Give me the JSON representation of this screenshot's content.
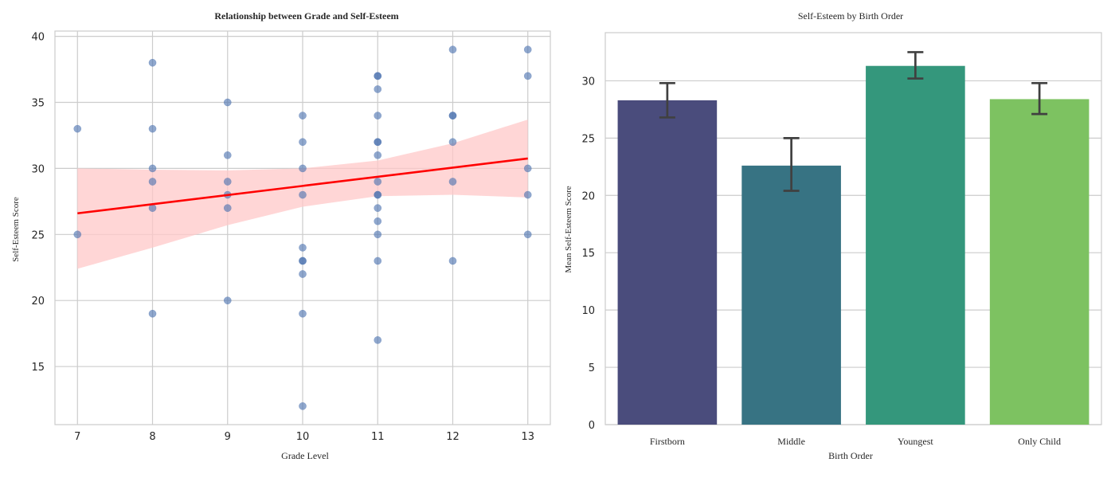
{
  "chart_data": [
    {
      "type": "scatter",
      "title": "Relationship between Grade and Self-Esteem",
      "xlabel": "Grade Level",
      "ylabel": "Self-Esteem Score",
      "xlim": [
        6.7,
        13.3
      ],
      "ylim": [
        10.6,
        40.4
      ],
      "xticks": [
        7,
        8,
        9,
        10,
        11,
        12,
        13
      ],
      "yticks": [
        15,
        20,
        25,
        30,
        35,
        40
      ],
      "grid": true,
      "point_color": "#4c72b0",
      "points": [
        {
          "x": 7,
          "y": 33
        },
        {
          "x": 7,
          "y": 25
        },
        {
          "x": 8,
          "y": 38
        },
        {
          "x": 8,
          "y": 33
        },
        {
          "x": 8,
          "y": 30
        },
        {
          "x": 8,
          "y": 29
        },
        {
          "x": 8,
          "y": 27
        },
        {
          "x": 8,
          "y": 19
        },
        {
          "x": 9,
          "y": 35
        },
        {
          "x": 9,
          "y": 31
        },
        {
          "x": 9,
          "y": 29
        },
        {
          "x": 9,
          "y": 28
        },
        {
          "x": 9,
          "y": 27
        },
        {
          "x": 9,
          "y": 20
        },
        {
          "x": 10,
          "y": 34
        },
        {
          "x": 10,
          "y": 32
        },
        {
          "x": 10,
          "y": 30
        },
        {
          "x": 10,
          "y": 28
        },
        {
          "x": 10,
          "y": 24
        },
        {
          "x": 10,
          "y": 23
        },
        {
          "x": 10,
          "y": 23
        },
        {
          "x": 10,
          "y": 22
        },
        {
          "x": 10,
          "y": 19
        },
        {
          "x": 10,
          "y": 12
        },
        {
          "x": 11,
          "y": 37
        },
        {
          "x": 11,
          "y": 37
        },
        {
          "x": 11,
          "y": 36
        },
        {
          "x": 11,
          "y": 34
        },
        {
          "x": 11,
          "y": 32
        },
        {
          "x": 11,
          "y": 32
        },
        {
          "x": 11,
          "y": 31
        },
        {
          "x": 11,
          "y": 29
        },
        {
          "x": 11,
          "y": 28
        },
        {
          "x": 11,
          "y": 28
        },
        {
          "x": 11,
          "y": 27
        },
        {
          "x": 11,
          "y": 26
        },
        {
          "x": 11,
          "y": 25
        },
        {
          "x": 11,
          "y": 23
        },
        {
          "x": 11,
          "y": 17
        },
        {
          "x": 12,
          "y": 39
        },
        {
          "x": 12,
          "y": 34
        },
        {
          "x": 12,
          "y": 34
        },
        {
          "x": 12,
          "y": 32
        },
        {
          "x": 12,
          "y": 29
        },
        {
          "x": 12,
          "y": 23
        },
        {
          "x": 13,
          "y": 39
        },
        {
          "x": 13,
          "y": 37
        },
        {
          "x": 13,
          "y": 30
        },
        {
          "x": 13,
          "y": 28
        },
        {
          "x": 13,
          "y": 25
        }
      ],
      "regression": {
        "color": "#ff0000",
        "line": [
          [
            7,
            26.6
          ],
          [
            13,
            30.75
          ]
        ],
        "ci_color": "#ffc8c8",
        "ci_upper": [
          [
            7,
            30.0
          ],
          [
            8,
            29.9
          ],
          [
            9,
            29.85
          ],
          [
            10,
            30.0
          ],
          [
            11,
            30.6
          ],
          [
            12,
            31.9
          ],
          [
            13,
            33.7
          ]
        ],
        "ci_lower": [
          [
            7,
            22.4
          ],
          [
            8,
            24.0
          ],
          [
            9,
            25.7
          ],
          [
            10,
            27.1
          ],
          [
            11,
            27.9
          ],
          [
            12,
            28.0
          ],
          [
            13,
            27.8
          ]
        ]
      }
    },
    {
      "type": "bar",
      "title": "Self-Esteem by Birth Order",
      "xlabel": "Birth Order",
      "ylabel": "Mean Self-Esteem Score",
      "ylim": [
        0,
        34.2
      ],
      "yticks": [
        0,
        5,
        10,
        15,
        20,
        25,
        30
      ],
      "grid": true,
      "categories": [
        "Firstborn",
        "Middle",
        "Youngest",
        "Only Child"
      ],
      "values": [
        28.3,
        22.6,
        31.3,
        28.4
      ],
      "error_low": [
        26.8,
        20.4,
        30.2,
        27.1
      ],
      "error_high": [
        29.8,
        25.0,
        32.5,
        29.8
      ],
      "colors": [
        "#4a4c7c",
        "#377383",
        "#34977c",
        "#7dc261"
      ],
      "error_color": "#404040"
    }
  ]
}
